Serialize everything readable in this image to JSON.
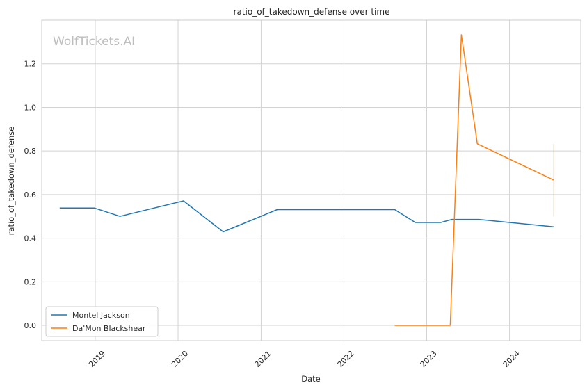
{
  "chart_data": {
    "type": "line",
    "title": "ratio_of_takedown_defense over time",
    "xlabel": "Date",
    "ylabel": "ratio_of_takedown_defense",
    "watermark": "WolfTickets.AI",
    "x_ticks": [
      "2019",
      "2020",
      "2021",
      "2022",
      "2023",
      "2024"
    ],
    "y_ticks": [
      "0.0",
      "0.2",
      "0.4",
      "0.6",
      "0.8",
      "1.0",
      "1.2"
    ],
    "xlim": [
      "2018-05-10",
      "2024-11-10"
    ],
    "ylim": [
      -0.07,
      1.4
    ],
    "grid": true,
    "legend_position": "bottom-left",
    "series": [
      {
        "name": "Montel Jackson",
        "color": "#1f77b4",
        "points": [
          {
            "x": "2018-07-28",
            "y": 0.538
          },
          {
            "x": "2018-12-29",
            "y": 0.538
          },
          {
            "x": "2019-04-20",
            "y": 0.5
          },
          {
            "x": "2020-01-25",
            "y": 0.571
          },
          {
            "x": "2020-07-18",
            "y": 0.429
          },
          {
            "x": "2021-03-13",
            "y": 0.531
          },
          {
            "x": "2022-08-13",
            "y": 0.531
          },
          {
            "x": "2022-11-12",
            "y": 0.472
          },
          {
            "x": "2023-03-04",
            "y": 0.472
          },
          {
            "x": "2023-04-22",
            "y": 0.486
          },
          {
            "x": "2023-08-19",
            "y": 0.486
          },
          {
            "x": "2024-07-13",
            "y": 0.452
          }
        ]
      },
      {
        "name": "Da'Mon Blackshear",
        "color": "#ff7f0e",
        "points": [
          {
            "x": "2022-08-13",
            "y": 0.0
          },
          {
            "x": "2023-04-15",
            "y": 0.0
          },
          {
            "x": "2023-06-03",
            "y": 1.333
          },
          {
            "x": "2023-08-12",
            "y": 0.833
          },
          {
            "x": "2024-07-13",
            "y": 0.667
          }
        ],
        "error_band": {
          "x": "2024-07-13",
          "low": 0.5,
          "high": 0.833
        }
      }
    ]
  }
}
